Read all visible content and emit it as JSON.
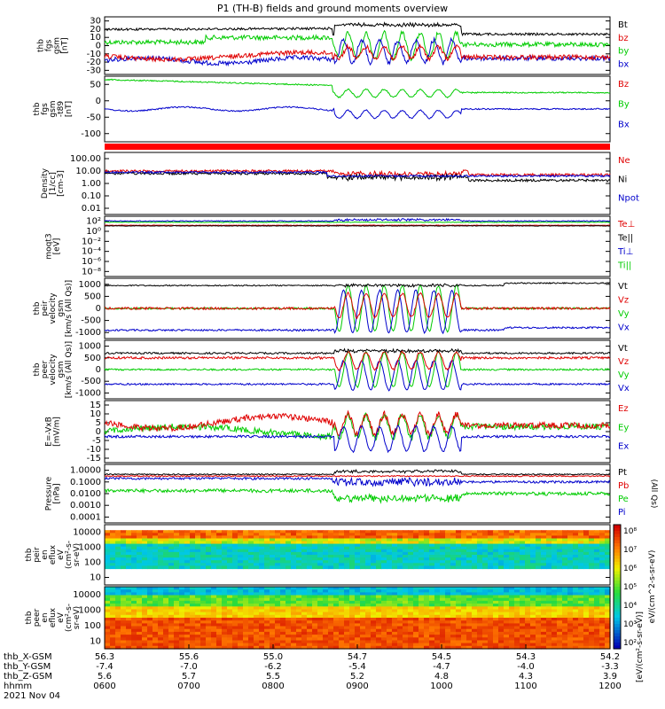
{
  "page": {
    "title": "P1 (TH-B) fields and ground moments overview"
  },
  "colors": {
    "black": "#000000",
    "red": "#e00000",
    "green": "#00cc00",
    "blue": "#0000cc",
    "bar": "#ff0000"
  },
  "chart_data": [
    {
      "type": "line",
      "panel": "fgs",
      "ylabel": [
        "thb",
        "fgs",
        "gsm",
        "[nT]"
      ],
      "yticks": [
        "30",
        "20",
        "10",
        "0",
        "-10",
        "-20",
        "-30"
      ],
      "ylim": [
        -30,
        30
      ],
      "legend": [
        {
          "label": "Bt",
          "color": "#000000"
        },
        {
          "label": "bz",
          "color": "#e00000"
        },
        {
          "label": "by",
          "color": "#00cc00"
        },
        {
          "label": "bx",
          "color": "#0000cc"
        }
      ]
    },
    {
      "type": "line",
      "panel": "fgs-t89",
      "ylabel": [
        "thb",
        "fgs",
        "gsm",
        "-t89",
        "[nT]"
      ],
      "yticks": [
        "50",
        "0",
        "-50",
        "-100"
      ],
      "ylim": [
        -130,
        60
      ],
      "legend": [
        {
          "label": "Bz",
          "color": "#e00000"
        },
        {
          "label": "By",
          "color": "#00cc00"
        },
        {
          "label": "Bx",
          "color": "#0000cc"
        }
      ]
    },
    {
      "type": "line",
      "panel": "density",
      "ylabel": [
        "Density",
        "[1/cc]",
        "[cm-3]"
      ],
      "yticks": [
        "100.00",
        "10.00",
        "1.00",
        "0.10",
        "0.01"
      ],
      "scale": "log",
      "legend": [
        {
          "label": "Ne",
          "color": "#e00000"
        },
        {
          "label": "Ni",
          "color": "#000000"
        },
        {
          "label": "Npot",
          "color": "#0000cc"
        }
      ]
    },
    {
      "type": "line",
      "panel": "temperature",
      "ylabel": [
        "moqt3",
        "[eV]"
      ],
      "yticks": [
        "10²",
        "10⁰",
        "10⁻²",
        "10⁻⁴",
        "10⁻⁶",
        "10⁻⁸"
      ],
      "scale": "log",
      "legend": [
        {
          "label": "Te⊥",
          "color": "#e00000"
        },
        {
          "label": "Te||",
          "color": "#000000"
        },
        {
          "label": "Ti⊥",
          "color": "#0000cc"
        },
        {
          "label": "Ti||",
          "color": "#00cc00"
        }
      ]
    },
    {
      "type": "line",
      "panel": "peir-velocity",
      "ylabel": [
        "thb",
        "peir",
        "velocity",
        "gsm",
        "[km/s (All Qs)]"
      ],
      "yticks": [
        "1000",
        "500",
        "0",
        "-500",
        "-1000"
      ],
      "ylim": [
        -1100,
        1100
      ],
      "legend": [
        {
          "label": "Vt",
          "color": "#000000"
        },
        {
          "label": "Vz",
          "color": "#e00000"
        },
        {
          "label": "Vy",
          "color": "#00cc00"
        },
        {
          "label": "Vx",
          "color": "#0000cc"
        }
      ]
    },
    {
      "type": "line",
      "panel": "peer-velocity",
      "ylabel": [
        "thb",
        "peer",
        "velocity",
        "gsm",
        "[km/s (All Qs)]"
      ],
      "yticks": [
        "1000",
        "500",
        "0",
        "-500",
        "-1000"
      ],
      "ylim": [
        -1100,
        1100
      ],
      "legend": [
        {
          "label": "Vt",
          "color": "#000000"
        },
        {
          "label": "Vz",
          "color": "#e00000"
        },
        {
          "label": "Vy",
          "color": "#00cc00"
        },
        {
          "label": "Vx",
          "color": "#0000cc"
        }
      ]
    },
    {
      "type": "line",
      "panel": "efield",
      "ylabel": [
        "E=-VxB",
        "[mV/m]"
      ],
      "yticks": [
        "15",
        "10",
        "5",
        "0",
        "-5",
        "-10",
        "-15"
      ],
      "ylim": [
        -15,
        15
      ],
      "legend": [
        {
          "label": "Ez",
          "color": "#e00000"
        },
        {
          "label": "Ey",
          "color": "#00cc00"
        },
        {
          "label": "Ex",
          "color": "#0000cc"
        }
      ]
    },
    {
      "type": "line",
      "panel": "pressure",
      "ylabel": [
        "Pressure",
        "[nPa]"
      ],
      "yticks": [
        "1.0000",
        "0.1000",
        "0.0100",
        "0.0010",
        "0.0001"
      ],
      "scale": "log",
      "legend": [
        {
          "label": "Pt",
          "color": "#000000"
        },
        {
          "label": "Pb",
          "color": "#e00000"
        },
        {
          "label": "Pe",
          "color": "#00cc00"
        },
        {
          "label": "Pi",
          "color": "#0000cc"
        }
      ],
      "side_label": "(All Qs)"
    },
    {
      "type": "heatmap",
      "panel": "peir-spectrogram",
      "ylabel": [
        "thb",
        "peir",
        "en",
        "eflux",
        "eV",
        "(cm²-s-",
        "sr-eV)"
      ],
      "yticks": [
        "10000",
        "1000",
        "100",
        "10"
      ],
      "scale": "log"
    },
    {
      "type": "heatmap",
      "panel": "peer-spectrogram",
      "ylabel": [
        "thb",
        "peer",
        "en",
        "eflux",
        "eV",
        "(cm²-s-",
        "sr-eV)"
      ],
      "yticks": [
        "10000",
        "1000",
        "100",
        "10"
      ],
      "scale": "log"
    }
  ],
  "colorbar": {
    "ticks": [
      "10⁸",
      "10⁷",
      "10⁶",
      "10⁵",
      "10⁴",
      "10³",
      "10²"
    ],
    "label": "[eV/(cm²-s-sr-eV)]",
    "side_label": "eV/(cm^2-s-sr-eV)"
  },
  "xaxis": {
    "rows": [
      {
        "label": "thb_X-GSM",
        "values": [
          "56.3",
          "55.6",
          "55.0",
          "54.7",
          "54.5",
          "54.3",
          "54.2"
        ]
      },
      {
        "label": "thb_Y-GSM",
        "values": [
          "-7.4",
          "-7.0",
          "-6.2",
          "-5.4",
          "-4.7",
          "-4.0",
          "-3.3"
        ]
      },
      {
        "label": "thb_Z-GSM",
        "values": [
          "5.6",
          "5.7",
          "5.5",
          "5.2",
          "4.8",
          "4.3",
          "3.9"
        ]
      },
      {
        "label": "hhmm",
        "values": [
          "0600",
          "0700",
          "0800",
          "0900",
          "1000",
          "1100",
          "1200"
        ]
      }
    ],
    "date": "2021 Nov 04"
  }
}
